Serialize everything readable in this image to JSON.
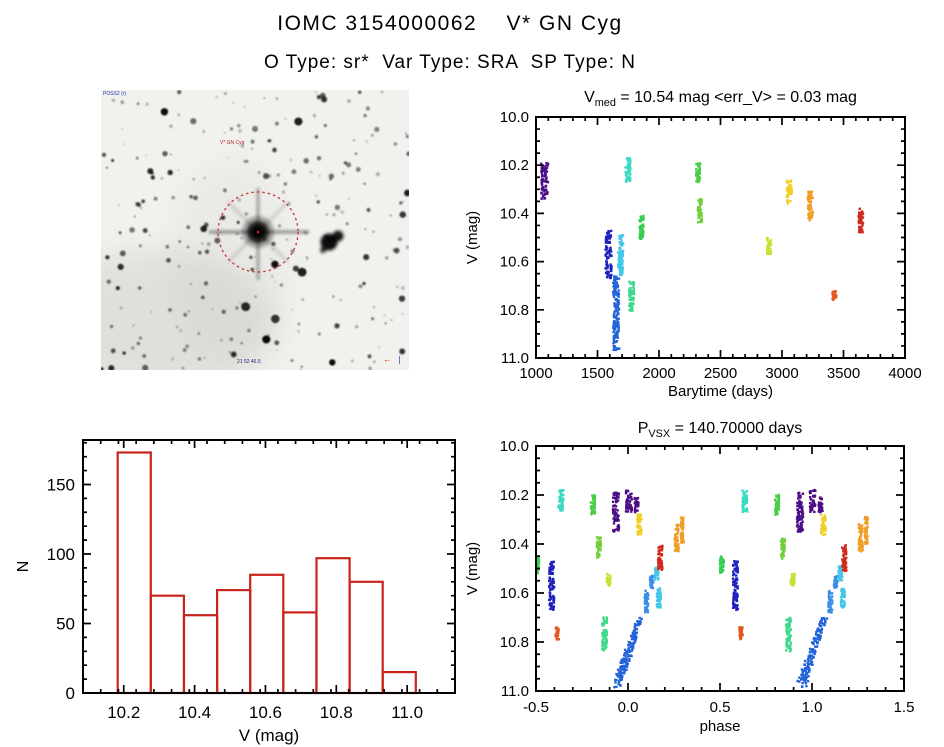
{
  "header": {
    "title": "IOMC 3154000062    V* GN Cyg",
    "subtitle": "O Type: sr*  Var Type: SRA  SP Type: N"
  },
  "finder": {
    "top_left_label": "POSS2 (r)",
    "star_label": "V* GN Cyg",
    "bottom_label": "21 52 46.5",
    "orientation_mark": "←",
    "scale_mark": "❘",
    "circle_color": "#cc3333"
  },
  "palette": {
    "violet": "#4D0D86",
    "navy": "#2121BE",
    "blue": "#2263D8",
    "skyblue": "#3B8EE6",
    "cyan": "#43C7E8",
    "turquoise": "#3CD9C3",
    "spring": "#40D98C",
    "green": "#38CC52",
    "lime": "#4ACD47",
    "lime2": "#72CE3A",
    "yellowgreen": "#C9E135",
    "gold": "#F0D028",
    "orange": "#F09D27",
    "orangered": "#E3571F",
    "red": "#CF2B1D"
  },
  "chart_data": [
    {
      "id": "lightcurve",
      "type": "scatter",
      "title_pre": "V",
      "title_sub": "med",
      "title_rest": " = 10.54 mag <err_V> = 0.03 mag",
      "xlabel": "Barytime (days)",
      "ylabel": "V (mag)",
      "xlim": [
        1000,
        4000
      ],
      "ylim_mag": [
        10.0,
        11.0
      ],
      "y_axis_inverted": true,
      "xticks": [
        "1000",
        "1500",
        "2000",
        "2500",
        "3000",
        "3500",
        "4000"
      ],
      "yticks": [
        "10.0",
        "10.2",
        "10.4",
        "10.6",
        "10.8",
        "11.0"
      ],
      "x_minor_step": 100,
      "y_minor_step": 0.05,
      "clusters": [
        {
          "t": 1070,
          "v": [
            10.19,
            10.34
          ],
          "color": "violet",
          "w": 7
        },
        {
          "t": 1590,
          "v": [
            10.47,
            10.67
          ],
          "color": "navy",
          "w": 6
        },
        {
          "t": 1652,
          "v": [
            10.66,
            10.97
          ],
          "color": "blue",
          "w": 6
        },
        {
          "t": 1688,
          "v": [
            10.49,
            10.66
          ],
          "color": "cyan",
          "w": 5
        },
        {
          "t": 1748,
          "v": [
            10.17,
            10.27
          ],
          "color": "turquoise",
          "w": 5
        },
        {
          "t": 1778,
          "v": [
            10.68,
            10.81
          ],
          "color": "spring",
          "w": 5
        },
        {
          "t": 1858,
          "v": [
            10.41,
            10.51
          ],
          "color": "green",
          "w": 4
        },
        {
          "t": 2318,
          "v": [
            10.19,
            10.27
          ],
          "color": "lime",
          "w": 4
        },
        {
          "t": 2333,
          "v": [
            10.34,
            10.44
          ],
          "color": "lime2",
          "w": 4
        },
        {
          "t": 2895,
          "v": [
            10.5,
            10.57
          ],
          "color": "yellowgreen",
          "w": 4
        },
        {
          "t": 3060,
          "v": [
            10.26,
            10.36
          ],
          "color": "gold",
          "w": 5
        },
        {
          "t": 3230,
          "v": [
            10.31,
            10.43
          ],
          "color": "orange",
          "w": 5
        },
        {
          "t": 3425,
          "v": [
            10.72,
            10.76
          ],
          "color": "orangered",
          "w": 4
        },
        {
          "t": 3640,
          "v": [
            10.38,
            10.48
          ],
          "color": "red",
          "w": 5
        }
      ]
    },
    {
      "id": "histogram",
      "type": "bar",
      "xlabel": "V (mag)",
      "ylabel": "N",
      "bar_color": "#C8231C",
      "xlim": [
        10.085,
        11.135
      ],
      "ylim": [
        0,
        182
      ],
      "bin_start": 10.183,
      "bin_width": 0.0935,
      "counts": [
        173,
        70,
        56,
        74,
        85,
        58,
        97,
        80,
        15
      ],
      "xticks": [
        "10.2",
        "10.4",
        "10.6",
        "10.8",
        "11.0"
      ],
      "yticks": [
        "0",
        "50",
        "100",
        "150"
      ],
      "x_minor_step": 0.05,
      "y_minor_step": 10
    },
    {
      "id": "phase",
      "type": "scatter",
      "title_pre": "P",
      "title_sub": "VSX",
      "title_rest": " = 140.70000 days",
      "xlabel": "phase",
      "ylabel": "V (mag)",
      "period_days": 140.7,
      "xlim": [
        -0.5,
        1.5
      ],
      "ylim_mag": [
        10.0,
        11.0
      ],
      "y_axis_inverted": true,
      "xticks": [
        "-0.5",
        "0.0",
        "0.5",
        "1.0",
        "1.5"
      ],
      "yticks": [
        "10.0",
        "10.2",
        "10.4",
        "10.6",
        "10.8",
        "11.0"
      ],
      "x_minor_step": 0.1,
      "y_minor_step": 0.05,
      "duplicate_offset": 1.0,
      "clusters": [
        {
          "p": -0.49,
          "v": [
            10.45,
            10.52
          ],
          "color": "green",
          "w": 4
        },
        {
          "p": -0.415,
          "v": [
            10.47,
            10.67
          ],
          "color": "navy",
          "w": 5
        },
        {
          "p": -0.385,
          "v": [
            10.74,
            10.79
          ],
          "color": "orangered",
          "w": 3.5
        },
        {
          "p": -0.365,
          "v": [
            10.18,
            10.27
          ],
          "color": "turquoise",
          "w": 5
        },
        {
          "p": -0.19,
          "v": [
            10.2,
            10.28
          ],
          "color": "lime",
          "w": 4
        },
        {
          "p": -0.158,
          "v": [
            10.37,
            10.46
          ],
          "color": "lime2",
          "w": 4
        },
        {
          "p": -0.128,
          "v": [
            10.7,
            10.84
          ],
          "color": "spring",
          "w": 5
        },
        {
          "p": -0.105,
          "v": [
            10.52,
            10.57
          ],
          "color": "yellowgreen",
          "w": 4
        },
        {
          "p": -0.065,
          "v": [
            10.19,
            10.35
          ],
          "color": "violet",
          "w": 6
        },
        {
          "p": 0.005,
          "v": [
            10.18,
            10.27
          ],
          "color": "violet",
          "w": 6
        },
        {
          "p": 0.047,
          "v": [
            10.21,
            10.27
          ],
          "color": "violet",
          "w": 4
        },
        {
          "p": 0.062,
          "v": [
            10.28,
            10.37
          ],
          "color": "gold",
          "w": 4.5
        },
        {
          "ramp": true,
          "p0": -0.055,
          "p1": 0.068,
          "v": [
            10.97,
            10.7
          ],
          "color": "blue",
          "w": 6
        },
        {
          "p": 0.1,
          "v": [
            10.59,
            10.68
          ],
          "color": "skyblue",
          "w": 4
        },
        {
          "p": 0.128,
          "v": [
            10.53,
            10.58
          ],
          "color": "skyblue",
          "w": 3.5
        },
        {
          "p": 0.155,
          "v": [
            10.49,
            10.55
          ],
          "color": "cyan",
          "w": 4
        },
        {
          "p": 0.168,
          "v": [
            10.58,
            10.66
          ],
          "color": "cyan",
          "w": 4
        },
        {
          "p": 0.175,
          "v": [
            10.4,
            10.51
          ],
          "color": "red",
          "w": 4.5
        },
        {
          "p": 0.265,
          "v": [
            10.32,
            10.43
          ],
          "color": "orange",
          "w": 4
        },
        {
          "p": 0.295,
          "v": [
            10.29,
            10.4
          ],
          "color": "orange",
          "w": 3
        }
      ]
    }
  ]
}
